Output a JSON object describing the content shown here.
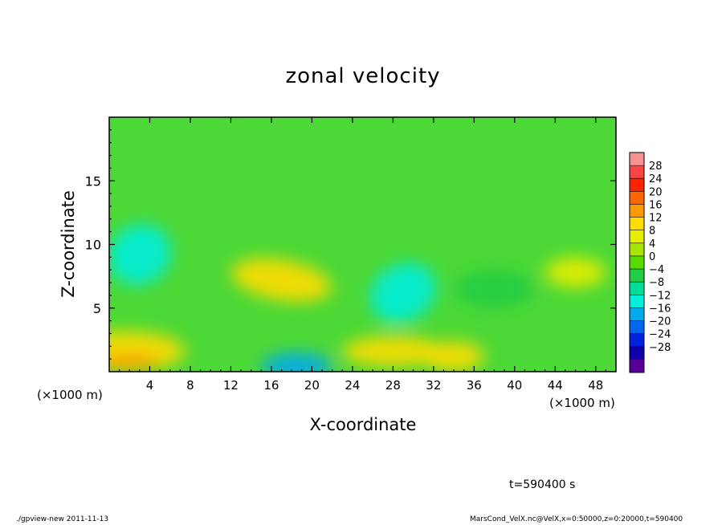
{
  "chart_data": {
    "type": "heatmap",
    "title": "zonal velocity",
    "xlabel": "X-coordinate",
    "ylabel": "Z-coordinate",
    "x_unit": "(×1000 m)",
    "y_unit": "(×1000 m)",
    "xlim": [
      0,
      50
    ],
    "ylim": [
      0,
      20
    ],
    "x_ticks": [
      4,
      8,
      12,
      16,
      20,
      24,
      28,
      32,
      36,
      40,
      44,
      48
    ],
    "y_ticks": [
      5,
      10,
      15
    ],
    "grid": false,
    "colorbar": {
      "levels": [
        28,
        24,
        20,
        16,
        12,
        8,
        4,
        0,
        -4,
        -8,
        -12,
        -16,
        -20,
        -24,
        -28
      ],
      "labels": [
        "28",
        "24",
        "20",
        "16",
        "12",
        "8",
        "4",
        "0",
        "−4",
        "−8",
        "−12",
        "−16",
        "−20",
        "−24",
        "−28"
      ],
      "colors": [
        "#f79292",
        "#f84545",
        "#ff2200",
        "#ff6600",
        "#ff9900",
        "#ffdd00",
        "#e8ee00",
        "#a8e600",
        "#55dd00",
        "#22cc44",
        "#00dd99",
        "#00eedd",
        "#00aaee",
        "#0066ee",
        "#0022dd",
        "#1100aa",
        "#550099"
      ]
    },
    "features": [
      {
        "x": 3,
        "z": 9.2,
        "value": -14,
        "rx": 3.2,
        "rz": 2.3,
        "rotate": -35
      },
      {
        "x": 1.5,
        "z": 1.6,
        "value": 8,
        "rx": 6,
        "rz": 1.6,
        "rotate": 0
      },
      {
        "x": 2,
        "z": 0.8,
        "value": 12,
        "rx": 3,
        "rz": 0.6,
        "rotate": 0
      },
      {
        "x": 17,
        "z": 7.2,
        "value": 10,
        "rx": 5,
        "rz": 1.6,
        "rotate": 10
      },
      {
        "x": 18.5,
        "z": 0.4,
        "value": -20,
        "rx": 3.5,
        "rz": 1.1,
        "rotate": 0
      },
      {
        "x": 29,
        "z": 6.2,
        "value": -14,
        "rx": 3.4,
        "rz": 2.2,
        "rotate": -30
      },
      {
        "x": 28,
        "z": 1.6,
        "value": 10,
        "rx": 5,
        "rz": 1.2,
        "rotate": 0
      },
      {
        "x": 34,
        "z": 1.2,
        "value": 8,
        "rx": 3,
        "rz": 1.2,
        "rotate": 0
      },
      {
        "x": 38,
        "z": 6.5,
        "value": -6,
        "rx": 4,
        "rz": 1.5,
        "rotate": 0
      },
      {
        "x": 46,
        "z": 7.8,
        "value": 4,
        "rx": 3,
        "rz": 1.2,
        "rotate": 0
      }
    ]
  },
  "annotation": {
    "time": "t=590400 s"
  },
  "footer": {
    "left": "./gpview-new  2011-11-13",
    "right": "MarsCond_VelX.nc@VelX,x=0:50000,z=0:20000,t=590400"
  }
}
